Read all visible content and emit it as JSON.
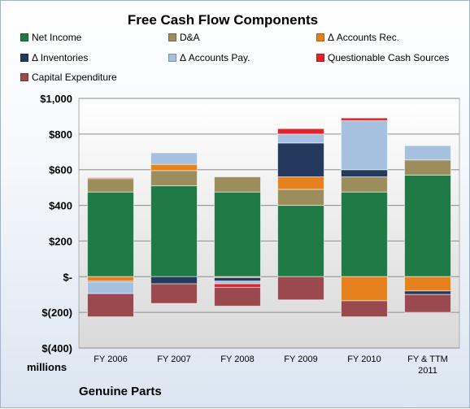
{
  "chart_data": {
    "type": "bar",
    "stacked": true,
    "title": "Free Cash Flow Components",
    "company": "Genuine Parts",
    "unit_label": "millions",
    "categories": [
      "FY 2006",
      "FY 2007",
      "FY 2008",
      "FY 2009",
      "FY 2010",
      "FY & TTM 2011"
    ],
    "category_lines": [
      [
        "FY 2006"
      ],
      [
        "FY 2007"
      ],
      [
        "FY 2008"
      ],
      [
        "FY 2009"
      ],
      [
        "FY 2010"
      ],
      [
        "FY & TTM",
        "2011"
      ]
    ],
    "ylim": [
      -400,
      1000
    ],
    "yticks": [
      {
        "value": 1000,
        "label": "$1,000"
      },
      {
        "value": 800,
        "label": "$800"
      },
      {
        "value": 600,
        "label": "$600"
      },
      {
        "value": 400,
        "label": "$400"
      },
      {
        "value": 200,
        "label": "$200"
      },
      {
        "value": 0,
        "label": "$-"
      },
      {
        "value": -200,
        "label": "$(200)"
      },
      {
        "value": -400,
        "label": "$(400)"
      }
    ],
    "grid": true,
    "legend_position": "top",
    "series": [
      {
        "name": "Net Income",
        "color": "#1f7a45",
        "values": [
          475,
          510,
          475,
          400,
          475,
          570
        ]
      },
      {
        "name": "D&A",
        "color": "#9c8d5d",
        "values": [
          75,
          85,
          85,
          90,
          85,
          85
        ]
      },
      {
        "name": "Δ Accounts Rec.",
        "color": "#e5821e",
        "values": [
          -25,
          35,
          -5,
          70,
          -135,
          -80
        ]
      },
      {
        "name": "Δ Inventories",
        "color": "#23395d",
        "values": [
          -5,
          -40,
          -20,
          190,
          40,
          -20
        ]
      },
      {
        "name": "Δ Accounts Pay.",
        "color": "#a6c1e0",
        "values": [
          -65,
          65,
          -15,
          50,
          275,
          80
        ]
      },
      {
        "name": "Questionable Cash Sources",
        "color": "#e0242a",
        "values": [
          5,
          0,
          -20,
          30,
          15,
          0
        ]
      },
      {
        "name": "Capital Expenditure",
        "color": "#9a4a4f",
        "values": [
          -130,
          -110,
          -105,
          -130,
          -90,
          -100
        ]
      }
    ]
  }
}
